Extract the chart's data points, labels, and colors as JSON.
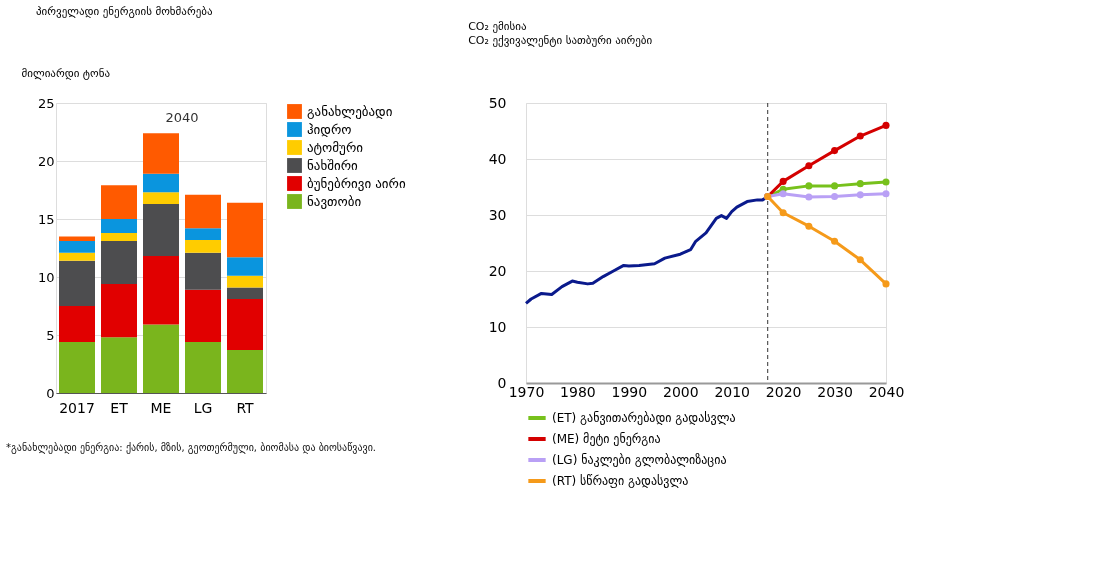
{
  "chart_data": [
    {
      "type": "bar",
      "title": "პირველადი ენერგიის მოხმარება",
      "ylabel": "მილიარდი ტონა",
      "stacked": true,
      "categories": [
        "2017",
        "ET",
        "ME",
        "LG",
        "RT"
      ],
      "series": [
        {
          "name": "ნავთობი",
          "color": "#7ab51d",
          "values": [
            4.4,
            4.8,
            5.9,
            4.4,
            3.7
          ]
        },
        {
          "name": "ბუნებრივი აირი",
          "color": "#e10000",
          "values": [
            3.1,
            4.6,
            5.9,
            4.5,
            4.4
          ]
        },
        {
          "name": "ნახშირი",
          "color": "#4d4d4f",
          "values": [
            3.9,
            3.7,
            4.5,
            3.2,
            1.0
          ]
        },
        {
          "name": "ატომური",
          "color": "#ffcc00",
          "values": [
            0.7,
            0.7,
            1.0,
            1.1,
            1.0
          ]
        },
        {
          "name": "ჰიდრო",
          "color": "#0a95de",
          "values": [
            1.0,
            1.2,
            1.6,
            1.0,
            1.6
          ]
        },
        {
          "name": "განახლებადი",
          "color": "#ff5a00",
          "values": [
            0.4,
            2.9,
            3.5,
            2.9,
            4.7
          ]
        }
      ],
      "ylim": [
        0,
        25
      ],
      "yticks": [
        0,
        5,
        10,
        15,
        20,
        25
      ],
      "grid": "y",
      "legend": "right",
      "annotations": [
        "2040",
        "*განახლებადი ენერგია: ქარის, მზის, გეოთერმული, ბიომასა და ბიოსაწვავი."
      ]
    },
    {
      "type": "line",
      "title": "CO₂ ემისია",
      "subtitle": "CO₂ ექვივალენტი სათბური აირები",
      "series": [
        {
          "color": "#0a1a8c",
          "marker": "none",
          "x": [
            1970,
            1971,
            1973,
            1975,
            1977,
            1979,
            1980,
            1982,
            1983,
            1985,
            1987,
            1989,
            1990,
            1992,
            1995,
            1997,
            2000,
            2002,
            2003,
            2005,
            2007,
            2008,
            2009,
            2010,
            2011,
            2013,
            2015,
            2016,
            2017
          ],
          "values": [
            14.2,
            15.0,
            16.0,
            15.8,
            17.2,
            18.2,
            18.0,
            17.7,
            17.8,
            19.0,
            20.0,
            21.0,
            20.9,
            21.0,
            21.3,
            22.3,
            23.0,
            23.8,
            25.3,
            26.8,
            29.4,
            29.9,
            29.4,
            30.6,
            31.4,
            32.4,
            32.7,
            32.7,
            33.3
          ]
        },
        {
          "name": "(ET) განვითარებადი გადასვლა",
          "color": "#77c11c",
          "marker": "circle",
          "x": [
            2017,
            2020,
            2025,
            2030,
            2035,
            2040
          ],
          "values": [
            33.3,
            34.6,
            35.2,
            35.2,
            35.6,
            35.9
          ]
        },
        {
          "name": "(ME) მეტი ენერგია",
          "color": "#d40000",
          "marker": "circle",
          "x": [
            2017,
            2020,
            2025,
            2030,
            2035,
            2040
          ],
          "values": [
            33.3,
            36.0,
            38.8,
            41.5,
            44.1,
            46.0
          ]
        },
        {
          "name": "(LG) ნაკლები გლობალიზაცია",
          "color": "#b9a0f5",
          "marker": "circle",
          "x": [
            2017,
            2020,
            2025,
            2030,
            2035,
            2040
          ],
          "values": [
            33.3,
            33.8,
            33.2,
            33.3,
            33.6,
            33.8
          ]
        },
        {
          "name": "(RT) სწრაფი გადასვლა",
          "color": "#f59a1a",
          "marker": "circle",
          "x": [
            2017,
            2020,
            2025,
            2030,
            2035,
            2040
          ],
          "values": [
            33.3,
            30.4,
            28.0,
            25.3,
            22.0,
            17.7
          ]
        }
      ],
      "xlim": [
        1970,
        2040
      ],
      "xticks": [
        1970,
        1980,
        1990,
        2000,
        2010,
        2020,
        2030,
        2040
      ],
      "ylim": [
        0,
        50
      ],
      "yticks": [
        0,
        10,
        20,
        30,
        40,
        50
      ],
      "grid": "y",
      "legend": "bottom",
      "ref_lines": [
        {
          "axis": "x",
          "value": 2017,
          "line_style": "dashed",
          "color": "#333333"
        }
      ]
    }
  ]
}
